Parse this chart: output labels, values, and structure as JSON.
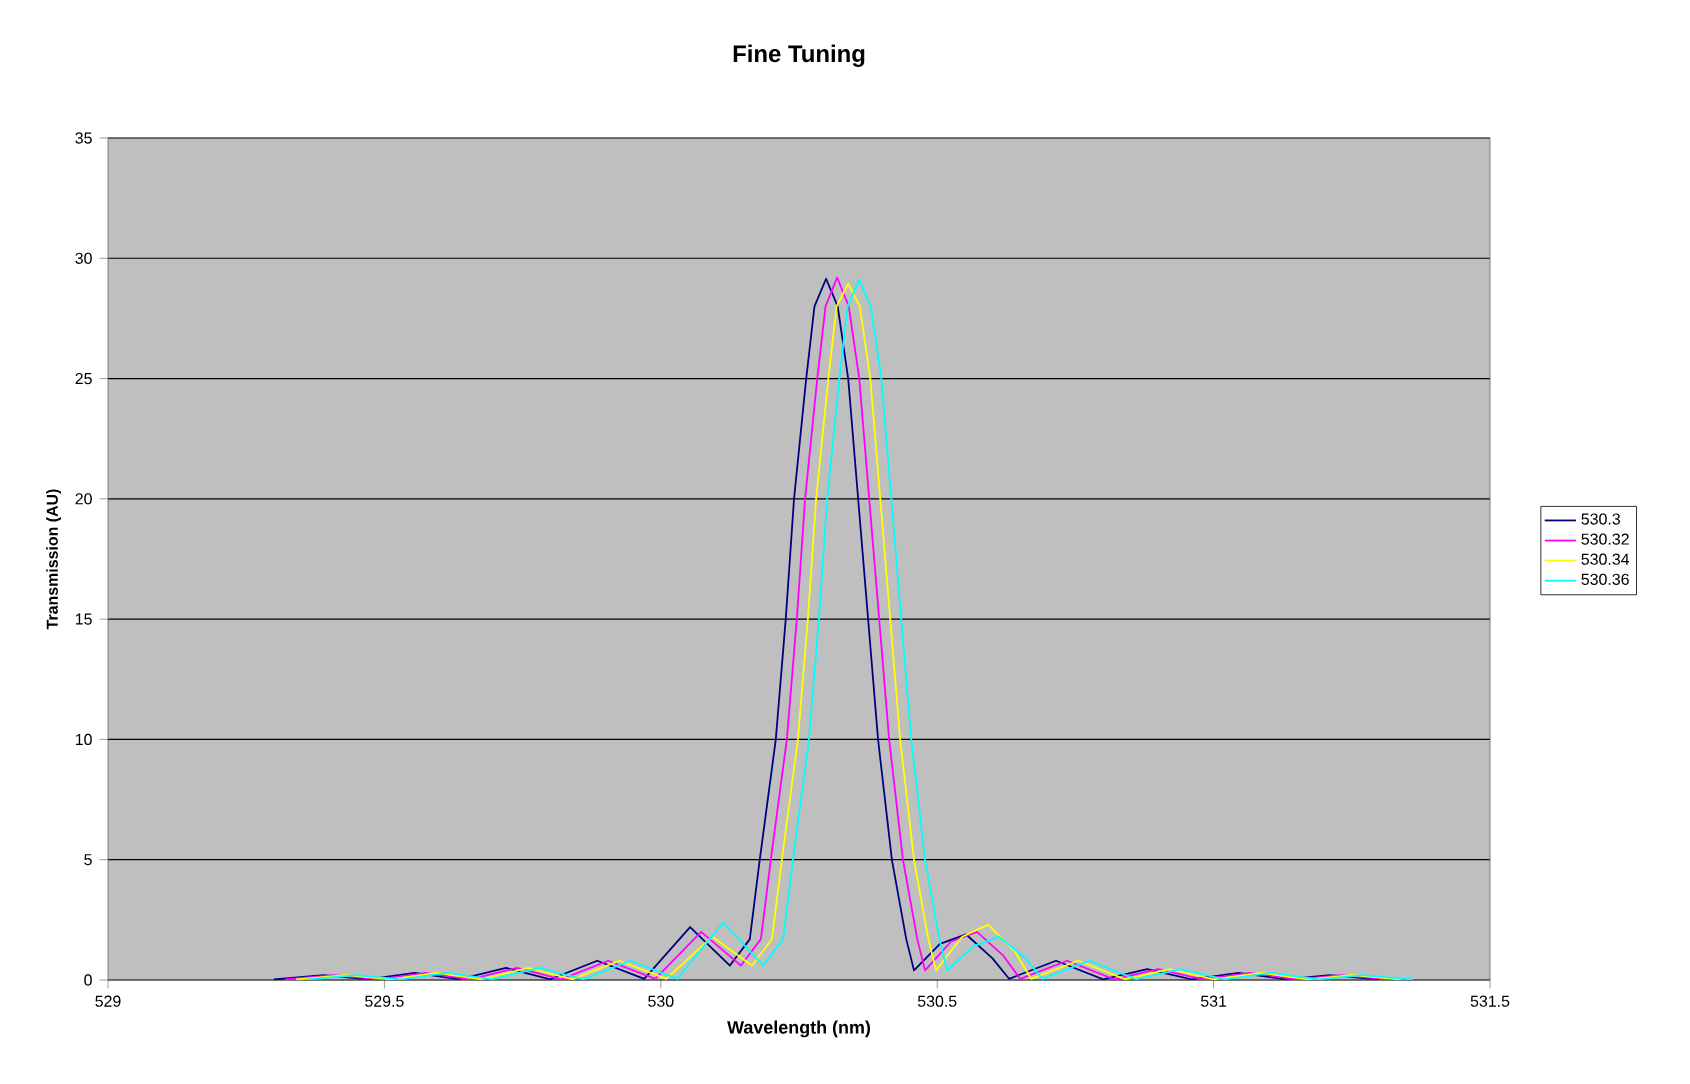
{
  "chart_data": {
    "type": "line",
    "title": "Fine Tuning",
    "xlabel": "Wavelength (nm)",
    "ylabel": "Transmission (AU)",
    "xlim": [
      529,
      531.5
    ],
    "xticks": [
      529,
      529.5,
      530,
      530.5,
      531,
      531.5
    ],
    "ylim": [
      0,
      35
    ],
    "yticks": [
      0,
      5,
      10,
      15,
      20,
      25,
      30,
      35
    ],
    "grid": "y",
    "legend": "right",
    "series": [
      {
        "name": "530.3",
        "color": "#000080",
        "x": [
          529.3,
          529.39,
          529.47,
          529.555,
          529.635,
          529.72,
          529.8,
          529.885,
          529.97,
          530.053,
          530.125,
          530.161,
          530.179,
          530.208,
          530.226,
          530.241,
          530.263,
          530.278,
          530.299,
          530.32,
          530.339,
          530.357,
          530.375,
          530.393,
          530.418,
          530.444,
          530.458,
          530.505,
          530.552,
          530.6,
          530.63,
          530.715,
          530.8,
          530.88,
          530.96,
          531.045,
          531.13,
          531.21,
          531.3
        ],
        "values": [
          0.02,
          0.2,
          0.03,
          0.3,
          0.03,
          0.5,
          0.03,
          0.8,
          0.05,
          2.2,
          0.6,
          1.7,
          5,
          10,
          15,
          20,
          25,
          28,
          29.15,
          28,
          25,
          20,
          15,
          10,
          5,
          1.7,
          0.4,
          1.5,
          1.9,
          0.9,
          0.05,
          0.8,
          0.03,
          0.45,
          0.03,
          0.3,
          0.03,
          0.2,
          0.02
        ]
      },
      {
        "name": "530.32",
        "color": "#ff00ff",
        "x": [
          529.32,
          529.41,
          529.49,
          529.575,
          529.655,
          529.74,
          529.82,
          529.905,
          529.99,
          530.073,
          530.145,
          530.181,
          530.199,
          530.228,
          530.246,
          530.261,
          530.283,
          530.298,
          530.319,
          530.34,
          530.359,
          530.377,
          530.395,
          530.413,
          530.438,
          530.464,
          530.478,
          530.525,
          530.572,
          530.62,
          530.65,
          530.735,
          530.82,
          530.9,
          530.98,
          531.065,
          531.15,
          531.23,
          531.32
        ],
        "values": [
          0.02,
          0.2,
          0.03,
          0.3,
          0.03,
          0.5,
          0.03,
          0.8,
          0.05,
          2.0,
          0.6,
          1.7,
          5,
          10,
          15,
          20,
          25,
          28,
          29.2,
          28,
          25,
          20,
          15,
          10,
          5,
          1.7,
          0.4,
          1.6,
          2.0,
          1.0,
          0.05,
          0.8,
          0.03,
          0.45,
          0.03,
          0.3,
          0.03,
          0.2,
          0.02
        ]
      },
      {
        "name": "530.34",
        "color": "#ffff00",
        "x": [
          529.34,
          529.43,
          529.51,
          529.595,
          529.675,
          529.76,
          529.84,
          529.925,
          530.01,
          530.093,
          530.165,
          530.201,
          530.219,
          530.248,
          530.266,
          530.281,
          530.303,
          530.318,
          530.339,
          530.36,
          530.379,
          530.397,
          530.415,
          530.433,
          530.458,
          530.484,
          530.498,
          530.545,
          530.592,
          530.64,
          530.67,
          530.755,
          530.84,
          530.92,
          531.0,
          531.085,
          531.17,
          531.25,
          531.34
        ],
        "values": [
          0.02,
          0.2,
          0.03,
          0.3,
          0.03,
          0.5,
          0.03,
          0.8,
          0.05,
          1.8,
          0.6,
          1.7,
          5,
          10,
          15,
          20,
          25,
          28,
          28.95,
          28,
          25,
          20,
          15,
          10,
          5,
          1.7,
          0.4,
          1.8,
          2.3,
          1.2,
          0.05,
          0.8,
          0.03,
          0.45,
          0.03,
          0.3,
          0.03,
          0.2,
          0.02
        ]
      },
      {
        "name": "530.36",
        "color": "#00ffff",
        "x": [
          529.36,
          529.45,
          529.53,
          529.615,
          529.695,
          529.78,
          529.86,
          529.945,
          530.03,
          530.113,
          530.185,
          530.221,
          530.239,
          530.268,
          530.286,
          530.301,
          530.323,
          530.338,
          530.359,
          530.38,
          530.399,
          530.417,
          530.435,
          530.453,
          530.478,
          530.504,
          530.518,
          530.565,
          530.612,
          530.66,
          530.69,
          530.775,
          530.86,
          530.94,
          531.02,
          531.105,
          531.19,
          531.27,
          531.36
        ],
        "values": [
          0.02,
          0.2,
          0.03,
          0.3,
          0.03,
          0.5,
          0.03,
          0.8,
          0.05,
          2.4,
          0.6,
          1.7,
          5,
          10,
          15,
          20,
          25,
          28,
          29.1,
          28,
          25,
          20,
          15,
          10,
          5,
          1.7,
          0.4,
          1.4,
          1.8,
          0.9,
          0.05,
          0.8,
          0.03,
          0.45,
          0.03,
          0.3,
          0.03,
          0.2,
          0.02
        ]
      }
    ]
  }
}
